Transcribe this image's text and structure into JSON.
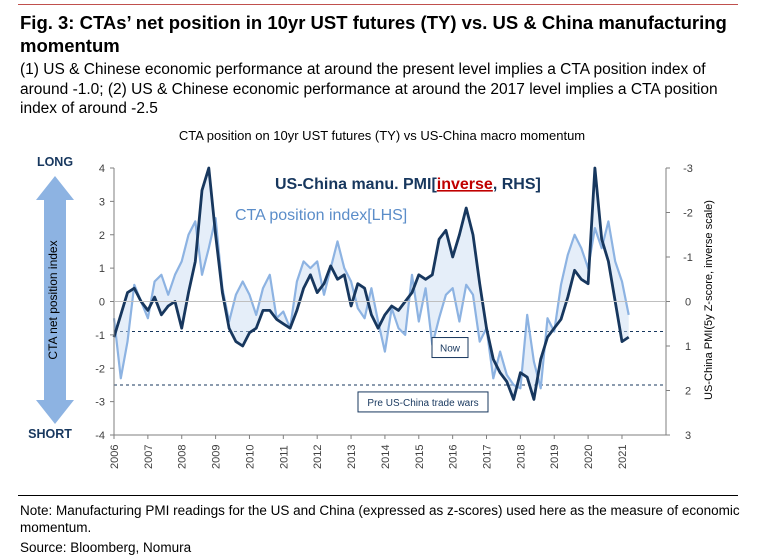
{
  "figure": {
    "title": "Fig. 3: CTAs’ net position in 10yr UST futures (TY) vs. US & China manufacturing momentum",
    "subtitle": "(1) US & Chinese economic performance at around the present level implies a CTA position index of around -1.0; (2) US & Chinese economic performance at around the 2017 level implies a CTA position index of around -2.5",
    "note": "Note: Manufacturing PMI readings for the US and China (expressed as z-scores) used here as the measure of economic momentum.",
    "source": "Source: Bloomberg, Nomura"
  },
  "chart_data": {
    "type": "line",
    "title": "CTA position on 10yr UST futures (TY) vs US-China macro momentum",
    "ylabel_left": "CTA net position index",
    "ylabel_right": "US-China PMI(5y Z-score, inverse scale)",
    "long_label": "LONG",
    "short_label": "SHORT",
    "ylim_left": [
      -4,
      4
    ],
    "ylim_right": [
      3,
      -3
    ],
    "yticks_left": [
      "4",
      "3",
      "2",
      "1",
      "0",
      "-1",
      "-2",
      "-3",
      "-4"
    ],
    "yticks_right": [
      "-3",
      "-2",
      "-1",
      "0",
      "1",
      "2",
      "3"
    ],
    "xlim": [
      2006,
      2022.3
    ],
    "xtick_labels": [
      "2006",
      "2007",
      "2008",
      "2009",
      "2010",
      "2011",
      "2012",
      "2013",
      "2014",
      "2015",
      "2016",
      "2017",
      "2018",
      "2019",
      "2020",
      "2021"
    ],
    "grid": false,
    "legend_pmi_prefix": "US-China manu. PMI[",
    "legend_pmi_inverse": "inverse",
    "legend_pmi_suffix": ", RHS]",
    "legend_cta": "CTA position index[LHS]",
    "reference_lines": [
      {
        "label": "Now",
        "value_left": -0.9
      },
      {
        "label": "Pre US-China trade wars",
        "value_left": -2.5
      }
    ],
    "series": [
      {
        "name": "CTA position index (LHS)",
        "color": "#8db3e2",
        "x": [
          2006.0,
          2006.2,
          2006.4,
          2006.6,
          2006.8,
          2007.0,
          2007.2,
          2007.4,
          2007.6,
          2007.8,
          2008.0,
          2008.2,
          2008.4,
          2008.6,
          2008.8,
          2009.0,
          2009.2,
          2009.4,
          2009.6,
          2009.8,
          2010.0,
          2010.2,
          2010.4,
          2010.6,
          2010.8,
          2011.0,
          2011.2,
          2011.4,
          2011.6,
          2011.8,
          2012.0,
          2012.2,
          2012.4,
          2012.6,
          2012.8,
          2013.0,
          2013.2,
          2013.4,
          2013.6,
          2013.8,
          2014.0,
          2014.2,
          2014.4,
          2014.6,
          2014.8,
          2015.0,
          2015.2,
          2015.4,
          2015.6,
          2015.8,
          2016.0,
          2016.2,
          2016.4,
          2016.6,
          2016.8,
          2017.0,
          2017.2,
          2017.4,
          2017.6,
          2017.8,
          2018.0,
          2018.2,
          2018.4,
          2018.6,
          2018.8,
          2019.0,
          2019.2,
          2019.4,
          2019.6,
          2019.8,
          2020.0,
          2020.2,
          2020.4,
          2020.6,
          2020.8,
          2021.0,
          2021.2
        ],
        "values": [
          -0.5,
          -2.3,
          -1.2,
          0.5,
          0.0,
          -0.5,
          0.6,
          0.8,
          0.2,
          0.8,
          1.2,
          2.0,
          2.4,
          0.8,
          1.6,
          2.5,
          0.4,
          -0.6,
          0.2,
          0.6,
          0.2,
          -0.4,
          0.4,
          0.8,
          -0.5,
          -0.3,
          -0.8,
          0.6,
          1.2,
          1.0,
          1.2,
          0.2,
          1.0,
          1.8,
          1.0,
          0.6,
          -0.2,
          -0.5,
          0.4,
          -0.6,
          -1.5,
          -0.2,
          -0.8,
          -1.0,
          0.8,
          -0.6,
          0.4,
          -1.3,
          -0.5,
          0.2,
          0.4,
          -0.6,
          0.5,
          0.2,
          -1.2,
          -0.8,
          -2.3,
          -1.5,
          -2.2,
          -2.5,
          -2.6,
          -0.4,
          -1.8,
          -2.6,
          -0.5,
          -0.9,
          0.5,
          1.4,
          2.0,
          1.6,
          1.0,
          2.2,
          1.6,
          2.4,
          1.2,
          0.6,
          -0.4
        ]
      },
      {
        "name": "US-China manu. PMI (inverse, RHS)",
        "color": "#17375e",
        "x": [
          2006.0,
          2006.2,
          2006.4,
          2006.6,
          2006.8,
          2007.0,
          2007.2,
          2007.4,
          2007.6,
          2007.8,
          2008.0,
          2008.2,
          2008.4,
          2008.6,
          2008.8,
          2009.0,
          2009.2,
          2009.4,
          2009.6,
          2009.8,
          2010.0,
          2010.2,
          2010.4,
          2010.6,
          2010.8,
          2011.0,
          2011.2,
          2011.4,
          2011.6,
          2011.8,
          2012.0,
          2012.2,
          2012.4,
          2012.6,
          2012.8,
          2013.0,
          2013.2,
          2013.4,
          2013.6,
          2013.8,
          2014.0,
          2014.2,
          2014.4,
          2014.6,
          2014.8,
          2015.0,
          2015.2,
          2015.4,
          2015.6,
          2015.8,
          2016.0,
          2016.2,
          2016.4,
          2016.6,
          2016.8,
          2017.0,
          2017.2,
          2017.4,
          2017.6,
          2017.8,
          2018.0,
          2018.2,
          2018.4,
          2018.6,
          2018.8,
          2019.0,
          2019.2,
          2019.4,
          2019.6,
          2019.8,
          2020.0,
          2020.2,
          2020.4,
          2020.6,
          2020.8,
          2021.0,
          2021.2
        ],
        "values": [
          0.8,
          0.3,
          -0.2,
          -0.3,
          0.0,
          0.2,
          -0.1,
          0.3,
          0.1,
          0.0,
          0.6,
          -0.2,
          -0.9,
          -2.5,
          -3.0,
          -1.5,
          -0.2,
          0.6,
          0.9,
          1.0,
          0.7,
          0.6,
          0.2,
          0.2,
          0.4,
          0.5,
          0.6,
          0.2,
          -0.3,
          -0.6,
          -0.2,
          -0.4,
          -0.8,
          -0.5,
          -0.6,
          0.1,
          -0.4,
          -0.3,
          0.3,
          0.6,
          0.3,
          0.1,
          0.2,
          0.0,
          -0.2,
          -0.6,
          -0.5,
          -0.6,
          -1.4,
          -1.6,
          -1.0,
          -1.5,
          -2.1,
          -1.5,
          -0.4,
          0.6,
          1.3,
          1.6,
          1.8,
          2.2,
          1.6,
          1.7,
          2.2,
          1.3,
          0.8,
          0.6,
          0.4,
          -0.1,
          -0.7,
          -0.5,
          -0.4,
          -3.0,
          -1.4,
          -0.9,
          0.0,
          0.9,
          0.8
        ]
      }
    ]
  }
}
